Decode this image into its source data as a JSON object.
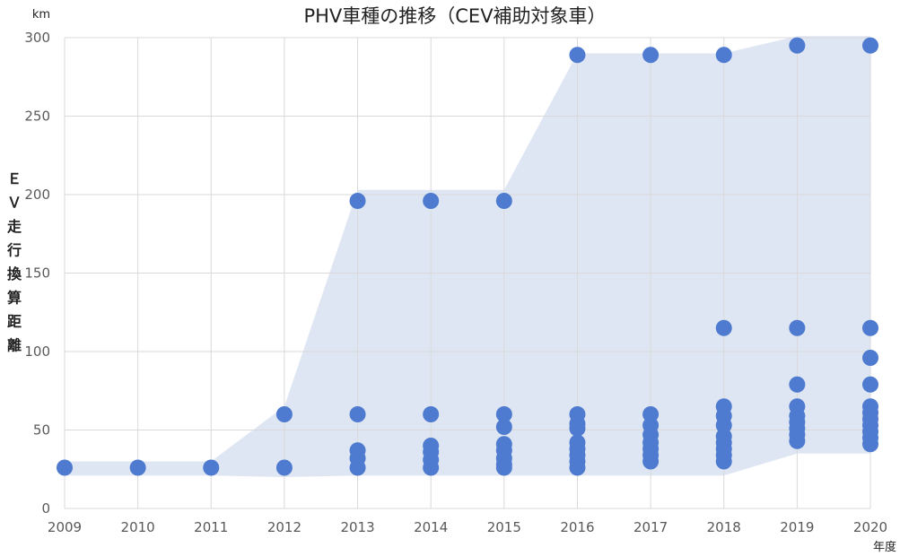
{
  "chart_data": {
    "type": "scatter",
    "title": "PHV車種の推移（CEV補助対象車）",
    "y_unit": "km",
    "x_unit": "年度",
    "ylabel": "ＥＶ走行換算距離",
    "ylim": [
      0,
      300
    ],
    "yticks": [
      0,
      50,
      100,
      150,
      200,
      250,
      300
    ],
    "xticks": [
      2009,
      2010,
      2011,
      2012,
      2013,
      2014,
      2015,
      2016,
      2017,
      2018,
      2019,
      2020
    ],
    "grid": true,
    "colors": {
      "marker": "#4e7bcf",
      "band": "#dfe6f3",
      "grid": "#d9d9d9"
    },
    "band": {
      "upper": [
        30,
        30,
        30,
        65,
        203,
        203,
        203,
        290,
        290,
        290,
        301,
        301
      ],
      "lower": [
        21,
        21,
        21,
        20,
        21,
        21,
        21,
        21,
        21,
        21,
        35,
        35
      ]
    },
    "points": [
      {
        "x": 2009,
        "y": 26
      },
      {
        "x": 2010,
        "y": 26
      },
      {
        "x": 2011,
        "y": 26
      },
      {
        "x": 2012,
        "y": 60
      },
      {
        "x": 2012,
        "y": 26
      },
      {
        "x": 2013,
        "y": 196
      },
      {
        "x": 2013,
        "y": 60
      },
      {
        "x": 2013,
        "y": 37
      },
      {
        "x": 2013,
        "y": 32
      },
      {
        "x": 2013,
        "y": 26
      },
      {
        "x": 2014,
        "y": 196
      },
      {
        "x": 2014,
        "y": 60
      },
      {
        "x": 2014,
        "y": 40
      },
      {
        "x": 2014,
        "y": 36
      },
      {
        "x": 2014,
        "y": 31
      },
      {
        "x": 2014,
        "y": 26
      },
      {
        "x": 2015,
        "y": 196
      },
      {
        "x": 2015,
        "y": 60
      },
      {
        "x": 2015,
        "y": 52
      },
      {
        "x": 2015,
        "y": 41
      },
      {
        "x": 2015,
        "y": 37
      },
      {
        "x": 2015,
        "y": 32
      },
      {
        "x": 2015,
        "y": 28
      },
      {
        "x": 2015,
        "y": 26
      },
      {
        "x": 2016,
        "y": 289
      },
      {
        "x": 2016,
        "y": 60
      },
      {
        "x": 2016,
        "y": 54
      },
      {
        "x": 2016,
        "y": 51
      },
      {
        "x": 2016,
        "y": 42
      },
      {
        "x": 2016,
        "y": 38
      },
      {
        "x": 2016,
        "y": 34
      },
      {
        "x": 2016,
        "y": 30
      },
      {
        "x": 2016,
        "y": 26
      },
      {
        "x": 2017,
        "y": 289
      },
      {
        "x": 2017,
        "y": 60
      },
      {
        "x": 2017,
        "y": 53
      },
      {
        "x": 2017,
        "y": 47
      },
      {
        "x": 2017,
        "y": 42
      },
      {
        "x": 2017,
        "y": 38
      },
      {
        "x": 2017,
        "y": 34
      },
      {
        "x": 2017,
        "y": 30
      },
      {
        "x": 2018,
        "y": 289
      },
      {
        "x": 2018,
        "y": 115
      },
      {
        "x": 2018,
        "y": 65
      },
      {
        "x": 2018,
        "y": 59
      },
      {
        "x": 2018,
        "y": 53
      },
      {
        "x": 2018,
        "y": 46
      },
      {
        "x": 2018,
        "y": 42
      },
      {
        "x": 2018,
        "y": 38
      },
      {
        "x": 2018,
        "y": 34
      },
      {
        "x": 2018,
        "y": 30
      },
      {
        "x": 2019,
        "y": 295
      },
      {
        "x": 2019,
        "y": 115
      },
      {
        "x": 2019,
        "y": 79
      },
      {
        "x": 2019,
        "y": 65
      },
      {
        "x": 2019,
        "y": 59
      },
      {
        "x": 2019,
        "y": 55
      },
      {
        "x": 2019,
        "y": 51
      },
      {
        "x": 2019,
        "y": 47
      },
      {
        "x": 2019,
        "y": 43
      },
      {
        "x": 2020,
        "y": 295
      },
      {
        "x": 2020,
        "y": 115
      },
      {
        "x": 2020,
        "y": 96
      },
      {
        "x": 2020,
        "y": 79
      },
      {
        "x": 2020,
        "y": 65
      },
      {
        "x": 2020,
        "y": 61
      },
      {
        "x": 2020,
        "y": 57
      },
      {
        "x": 2020,
        "y": 53
      },
      {
        "x": 2020,
        "y": 49
      },
      {
        "x": 2020,
        "y": 45
      },
      {
        "x": 2020,
        "y": 41
      }
    ]
  }
}
